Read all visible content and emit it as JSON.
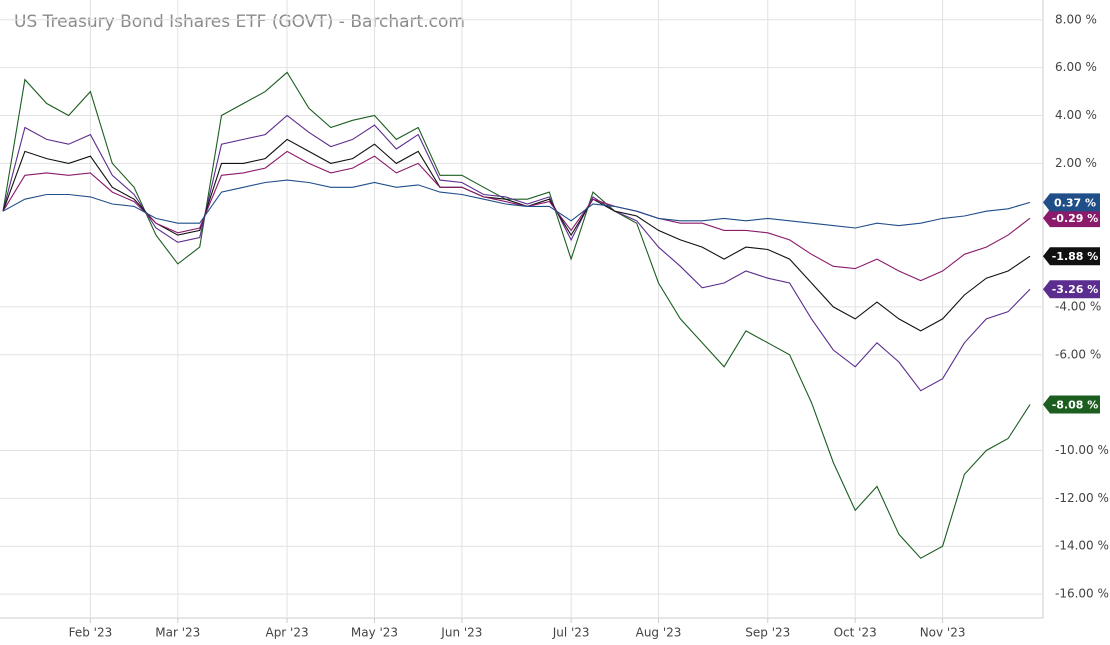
{
  "chart_data": {
    "type": "line",
    "title": "US Treasury Bond Ishares ETF (GOVT) - Barchart.com",
    "categories": [
      null,
      null,
      null,
      null,
      "Feb '23",
      null,
      null,
      null,
      "Mar '23",
      null,
      null,
      null,
      null,
      "Apr '23",
      null,
      null,
      null,
      "May '23",
      null,
      null,
      null,
      "Jun '23",
      null,
      null,
      null,
      null,
      "Jul '23",
      null,
      null,
      null,
      "Aug '23",
      null,
      null,
      null,
      null,
      "Sep '23",
      null,
      null,
      null,
      "Oct '23",
      null,
      null,
      null,
      "Nov '23",
      null,
      null,
      null,
      null
    ],
    "ylim": [
      -17,
      8.2
    ],
    "yticks": [
      {
        "value": 8,
        "label": "8.00 %"
      },
      {
        "value": 6,
        "label": "6.00 %"
      },
      {
        "value": 4,
        "label": "4.00 %"
      },
      {
        "value": 2,
        "label": "2.00 %"
      },
      {
        "value": -4,
        "label": "-4.00 %"
      },
      {
        "value": -6,
        "label": "-6.00 %"
      },
      {
        "value": -10,
        "label": "-10.00 %"
      },
      {
        "value": -12,
        "label": "-12.00 %"
      },
      {
        "value": -14,
        "label": "-14.00 %"
      },
      {
        "value": -16,
        "label": "-16.00 %"
      }
    ],
    "grid": true,
    "series": [
      {
        "color": "#1b5e20",
        "values": [
          0,
          5.5,
          4.5,
          4.0,
          5.0,
          2.0,
          1.0,
          -1.0,
          -2.2,
          -1.5,
          4.0,
          4.5,
          5.0,
          5.8,
          4.3,
          3.5,
          3.8,
          4.0,
          3.0,
          3.5,
          1.5,
          1.5,
          1.0,
          0.5,
          0.5,
          0.8,
          -2.0,
          0.8,
          0,
          -0.5,
          -3.0,
          -4.5,
          -5.5,
          -6.5,
          -5.0,
          -5.5,
          -6.0,
          -8.0,
          -10.5,
          -12.5,
          -11.5,
          -13.5,
          -14.5,
          -14.0,
          -11.0,
          -10.0,
          -9.5,
          -8.08
        ],
        "value_labels": [
          null,
          null,
          null,
          null,
          null,
          null,
          null,
          null,
          null,
          null,
          null,
          null,
          null,
          null,
          null,
          null,
          null,
          null,
          null,
          null,
          null,
          null,
          null,
          null,
          null,
          null,
          null,
          null,
          null,
          null,
          null,
          null,
          null,
          null,
          null,
          null,
          null,
          null,
          null,
          null,
          null,
          null,
          null,
          null,
          null,
          null,
          null,
          "-8.08 %"
        ]
      },
      {
        "color": "#5b2d8e",
        "values": [
          0,
          3.5,
          3.0,
          2.8,
          3.2,
          1.5,
          0.7,
          -0.7,
          -1.3,
          -1.1,
          2.8,
          3.0,
          3.2,
          4.0,
          3.3,
          2.7,
          3.0,
          3.6,
          2.6,
          3.2,
          1.3,
          1.2,
          0.7,
          0.6,
          0.3,
          0.6,
          -1.2,
          0.6,
          0,
          -0.4,
          -1.5,
          -2.3,
          -3.2,
          -3.0,
          -2.5,
          -2.8,
          -3.0,
          -4.5,
          -5.8,
          -6.5,
          -5.5,
          -6.3,
          -7.5,
          -7.0,
          -5.5,
          -4.5,
          -4.2,
          -3.26
        ],
        "value_labels": [
          null,
          null,
          null,
          null,
          null,
          null,
          null,
          null,
          null,
          null,
          null,
          null,
          null,
          null,
          null,
          null,
          null,
          null,
          null,
          null,
          null,
          null,
          null,
          null,
          null,
          null,
          null,
          null,
          null,
          null,
          null,
          null,
          null,
          null,
          null,
          null,
          null,
          null,
          null,
          null,
          null,
          null,
          null,
          null,
          null,
          null,
          null,
          "-3.26 %"
        ]
      },
      {
        "color": "#111111",
        "values": [
          0,
          2.5,
          2.2,
          2.0,
          2.3,
          1.0,
          0.5,
          -0.5,
          -1.0,
          -0.8,
          2.0,
          2.0,
          2.2,
          3.0,
          2.5,
          2.0,
          2.2,
          2.8,
          2.0,
          2.5,
          1.0,
          1.0,
          0.6,
          0.5,
          0.2,
          0.5,
          -1.0,
          0.5,
          0,
          -0.2,
          -0.8,
          -1.2,
          -1.5,
          -2.0,
          -1.5,
          -1.6,
          -2.0,
          -3.0,
          -4.0,
          -4.5,
          -3.8,
          -4.5,
          -5.0,
          -4.5,
          -3.5,
          -2.8,
          -2.5,
          -1.88
        ],
        "value_labels": [
          null,
          null,
          null,
          null,
          null,
          null,
          null,
          null,
          null,
          null,
          null,
          null,
          null,
          null,
          null,
          null,
          null,
          null,
          null,
          null,
          null,
          null,
          null,
          null,
          null,
          null,
          null,
          null,
          null,
          null,
          null,
          null,
          null,
          null,
          null,
          null,
          null,
          null,
          null,
          null,
          null,
          null,
          null,
          null,
          null,
          null,
          null,
          "-1.88 %"
        ]
      },
      {
        "color": "#8b1a6b",
        "values": [
          0,
          1.5,
          1.6,
          1.5,
          1.6,
          0.8,
          0.4,
          -0.5,
          -0.9,
          -0.7,
          1.5,
          1.6,
          1.8,
          2.5,
          2.0,
          1.6,
          1.8,
          2.3,
          1.6,
          2.0,
          1.0,
          1.0,
          0.6,
          0.4,
          0.2,
          0.4,
          -0.8,
          0.5,
          0.2,
          0,
          -0.3,
          -0.5,
          -0.5,
          -0.8,
          -0.8,
          -0.9,
          -1.2,
          -1.8,
          -2.3,
          -2.4,
          -2.0,
          -2.5,
          -2.9,
          -2.5,
          -1.8,
          -1.5,
          -1.0,
          -0.29
        ],
        "value_labels": [
          null,
          null,
          null,
          null,
          null,
          null,
          null,
          null,
          null,
          null,
          null,
          null,
          null,
          null,
          null,
          null,
          null,
          null,
          null,
          null,
          null,
          null,
          null,
          null,
          null,
          null,
          null,
          null,
          null,
          null,
          null,
          null,
          null,
          null,
          null,
          null,
          null,
          null,
          null,
          null,
          null,
          null,
          null,
          null,
          null,
          null,
          null,
          "-0.29 %"
        ]
      },
      {
        "color": "#1f4e89",
        "values": [
          0,
          0.5,
          0.7,
          0.7,
          0.6,
          0.3,
          0.2,
          -0.3,
          -0.5,
          -0.5,
          0.8,
          1.0,
          1.2,
          1.3,
          1.2,
          1.0,
          1.0,
          1.2,
          1.0,
          1.1,
          0.8,
          0.7,
          0.5,
          0.3,
          0.2,
          0.2,
          -0.4,
          0.3,
          0.2,
          0,
          -0.3,
          -0.4,
          -0.4,
          -0.3,
          -0.4,
          -0.3,
          -0.4,
          -0.5,
          -0.6,
          -0.7,
          -0.5,
          -0.6,
          -0.5,
          -0.3,
          -0.2,
          0,
          0.1,
          0.37
        ],
        "value_labels": [
          null,
          null,
          null,
          null,
          null,
          null,
          null,
          null,
          null,
          null,
          null,
          null,
          null,
          null,
          null,
          null,
          null,
          null,
          null,
          null,
          null,
          null,
          null,
          null,
          null,
          null,
          null,
          null,
          null,
          null,
          null,
          null,
          null,
          null,
          null,
          null,
          null,
          null,
          null,
          null,
          null,
          null,
          null,
          null,
          null,
          null,
          null,
          "0.37 %"
        ]
      }
    ]
  }
}
